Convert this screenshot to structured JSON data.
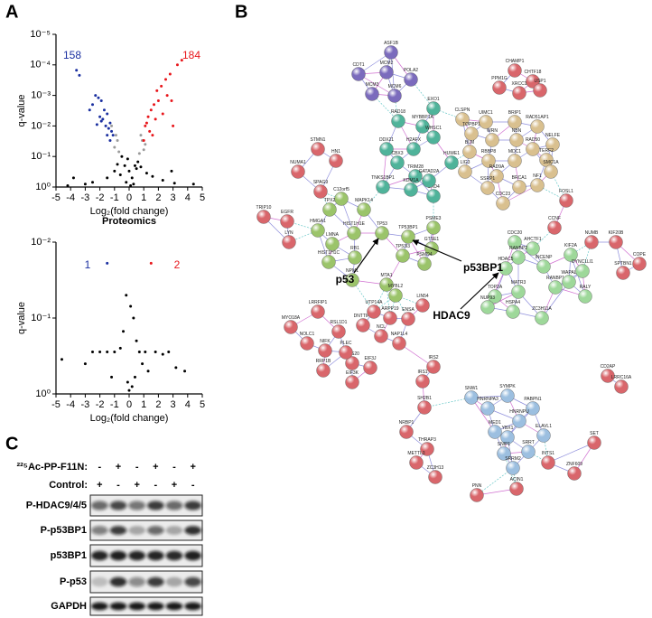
{
  "panel_labels": [
    "A",
    "B",
    "C"
  ],
  "chart_data": [
    {
      "type": "scatter",
      "xlabel": "Log₂(fold change)",
      "ylabel": "q-value",
      "log_scale_y": true,
      "xlim": [
        -5,
        5
      ],
      "xticks": [
        -5,
        -4,
        -3,
        -2,
        -1,
        0,
        1,
        2,
        3,
        4,
        5
      ],
      "ylim": [
        1,
        1e-05
      ],
      "yticks": [
        {
          "value": 1,
          "label": "10⁰"
        },
        {
          "value": 0.1,
          "label": "10⁻¹"
        },
        {
          "value": 0.01,
          "label": "10⁻²"
        },
        {
          "value": 0.001,
          "label": "10⁻³"
        },
        {
          "value": 0.0001,
          "label": "10⁻⁴"
        },
        {
          "value": 1e-05,
          "label": "10⁻⁵"
        }
      ],
      "annotations": [
        {
          "value": 158,
          "color": "#1a2fa0"
        },
        {
          "value": 184,
          "color": "#e8161b"
        }
      ],
      "series": [
        {
          "color": "#000000",
          "x": [
            -0.5,
            -0.3,
            0,
            0.2,
            0.4,
            0.6,
            -0.6,
            -1.0,
            1.2,
            -1.5,
            1.6,
            -2.5,
            2.3,
            -3.0,
            3.1,
            -4.2,
            4.4,
            -0.2,
            0.1,
            0.3,
            -3.8,
            2.9,
            -0.1,
            0.5,
            -0.8,
            0.8
          ],
          "values": [
            0.1,
            0.2,
            0.3,
            0.5,
            0.2,
            0.15,
            0.4,
            0.3,
            0.35,
            0.5,
            0.45,
            0.7,
            0.6,
            0.8,
            0.75,
            0.9,
            0.8,
            0.7,
            0.9,
            0.8,
            0.5,
            0.3,
            0.12,
            0.25,
            0.18,
            0.22
          ]
        },
        {
          "color": "#9a9a9a",
          "x": [
            -1.2,
            -0.9,
            -0.8,
            0.8,
            0.9,
            1.1,
            -1.0,
            1.0,
            -0.7,
            0.7
          ],
          "values": [
            0.01,
            0.02,
            0.03,
            0.02,
            0.03,
            0.04,
            0.05,
            0.06,
            0.07,
            0.08
          ]
        },
        {
          "color": "#1a2fa0",
          "x": [
            -3.6,
            -3.4,
            -2.3,
            -2.1,
            -1.9,
            -2.5,
            -1.7,
            -1.5,
            -2.0,
            -1.8,
            -1.3,
            -2.2,
            -1.6,
            -1.4,
            -1.2,
            -1.1,
            -2.7,
            -1.9,
            -1.5,
            -1.3
          ],
          "values": [
            0.00015,
            0.00022,
            0.001,
            0.0012,
            0.0015,
            0.002,
            0.003,
            0.004,
            0.005,
            0.006,
            0.008,
            0.009,
            0.01,
            0.012,
            0.015,
            0.02,
            0.003,
            0.007,
            0.02,
            0.03
          ]
        },
        {
          "color": "#e8161b",
          "x": [
            3.3,
            3.6,
            2.8,
            2.5,
            2.2,
            1.9,
            2.6,
            2.0,
            1.7,
            1.5,
            2.3,
            1.3,
            1.8,
            1.2,
            1.1,
            2.9,
            1.4,
            1.6,
            1.0,
            3.0
          ],
          "values": [
            0.0001,
            7e-05,
            0.0002,
            0.0003,
            0.0005,
            0.0007,
            0.001,
            0.0015,
            0.002,
            0.003,
            0.004,
            0.005,
            0.006,
            0.008,
            0.01,
            0.0015,
            0.015,
            0.02,
            0.03,
            0.01
          ]
        }
      ]
    },
    {
      "type": "scatter",
      "title": "Proteomics",
      "xlabel": "Log₂(fold change)",
      "ylabel": "q-value",
      "log_scale_y": true,
      "xlim": [
        -5,
        5
      ],
      "xticks": [
        -5,
        -4,
        -3,
        -2,
        -1,
        0,
        1,
        2,
        3,
        4,
        5
      ],
      "ylim": [
        1,
        0.01
      ],
      "yticks": [
        {
          "value": 1,
          "label": "10⁰"
        },
        {
          "value": 0.1,
          "label": "10⁻¹"
        },
        {
          "value": 0.01,
          "label": "10⁻²"
        }
      ],
      "annotations": [
        {
          "value": 1,
          "color": "#1a2fa0"
        },
        {
          "value": 2,
          "color": "#e8161b"
        }
      ],
      "series": [
        {
          "color": "#000000",
          "x": [
            -0.2,
            0.1,
            0.3,
            -0.4,
            0.5,
            -0.6,
            0.7,
            -1.0,
            1.1,
            -1.5,
            1.8,
            -2.0,
            2.3,
            -3.0,
            3.2,
            -4.6,
            3.8,
            0.4,
            0.2,
            -0.1,
            0.0,
            1.3,
            -1.2,
            0.9,
            -2.5,
            2.7
          ],
          "values": [
            0.05,
            0.07,
            0.1,
            0.15,
            0.2,
            0.25,
            0.28,
            0.28,
            0.28,
            0.28,
            0.28,
            0.28,
            0.3,
            0.4,
            0.45,
            0.35,
            0.5,
            0.6,
            0.8,
            0.7,
            0.9,
            0.5,
            0.6,
            0.4,
            0.28,
            0.28
          ]
        },
        {
          "color": "#1a2fa0",
          "x": [
            -1.5
          ],
          "values": [
            0.019
          ]
        },
        {
          "color": "#e8161b",
          "x": [
            1.5
          ],
          "values": [
            0.019
          ]
        }
      ]
    }
  ],
  "network": {
    "clusters": [
      {
        "color": "#7b6bbd",
        "nodes": [
          "ASF1B",
          "CDT1",
          "MCM2",
          "POLA2",
          "MCM3",
          "MCM6"
        ]
      },
      {
        "color": "#4fb39a",
        "nodes": [
          "EXO1",
          "RAD18",
          "MYBBP1A",
          "WHSC1",
          "DDX21",
          "H2AFX",
          "CBX3",
          "TRIM28",
          "TNKS1BP1",
          "KDM1A",
          "CHD4",
          "GATAD2A",
          "HUWE1"
        ]
      },
      {
        "color": "#d9c08f",
        "nodes": [
          "CLSPN",
          "UIMC1",
          "BRIP1",
          "RAD51AP1",
          "TOPBP1",
          "WRN",
          "NBN",
          "RAD50",
          "NELFE",
          "BLM",
          "RBBP8",
          "MDC1",
          "TERF2",
          "SMC1A",
          "LIG3",
          "RAD9A",
          "SSRP1",
          "BRCA1",
          "NF1",
          "CDC23"
        ]
      },
      {
        "color": "#9bc46a",
        "nodes": [
          "C12orf5",
          "TPX2",
          "MAPK14",
          "HMGA1",
          "HIST1H1E",
          "TP53",
          "TP53BP1",
          "PSME3",
          "LMNA",
          "RB1",
          "TP53I3",
          "GTSE1",
          "PSMD4",
          "NPM1",
          "MTA1",
          "MYBL2",
          "HIST1H1C"
        ]
      },
      {
        "color": "#9ed89a",
        "nodes": [
          "CDC20",
          "AHCTF1",
          "KIF2A",
          "DYNC1LI1",
          "RANBP2",
          "HDAC5",
          "INCENP",
          "TOP2A",
          "MATR3",
          "RANBP1",
          "WAPAL",
          "RALY",
          "NUP93",
          "HSPA4",
          "ZC3H11A"
        ]
      },
      {
        "color": "#9cbfe0",
        "nodes": [
          "SNW1",
          "SYMPK",
          "HNRNPA3",
          "PABPN1",
          "HNRNPU",
          "MED1",
          "YBX1",
          "ELAVL1",
          "SNIP1",
          "SRRT",
          "SRRM2"
        ]
      },
      {
        "color": "#d9666b",
        "nodes": [
          "CHAMP1",
          "CHTF18",
          "PPM1G",
          "XRCC1",
          "USP1",
          "STMN1",
          "HN1",
          "NUMA1",
          "SPAG9",
          "TRIP10",
          "EGFR",
          "LYN",
          "FOSL1",
          "CCNF",
          "NUMB",
          "KIF20B",
          "COPE",
          "SPTBN1",
          "MYO18A",
          "LRRFIP1",
          "NOLC1",
          "NIFK",
          "RRP1B",
          "RPS20",
          "EIF3J",
          "EIF3K",
          "PLEC",
          "RSL1D1",
          "DNTTIP2",
          "UTP14A",
          "ARPP19",
          "NCL",
          "NAP1L4",
          "ENSA",
          "LIN54",
          "IRS2",
          "IRS1",
          "SH2B1",
          "NRBP1",
          "THRAP3",
          "METTL3",
          "ZC3H13",
          "PNN",
          "ACIN1",
          "INTS1",
          "ZNF609",
          "SET",
          "CD2AP",
          "LRRC16A"
        ]
      }
    ],
    "annotations": [
      "p53",
      "p53BP1",
      "HDAC9"
    ]
  },
  "blot": {
    "treatments": [
      {
        "label": "²²⁵Ac-PP-F11N:",
        "signs": [
          "-",
          "+",
          "-",
          "+",
          "-",
          "+"
        ]
      },
      {
        "label": "Control:",
        "signs": [
          "+",
          "-",
          "+",
          "-",
          "+",
          "-"
        ]
      }
    ],
    "rows": [
      "P-HDAC9/4/5",
      "P-p53BP1",
      "p53BP1",
      "P-p53",
      "GAPDH"
    ]
  }
}
